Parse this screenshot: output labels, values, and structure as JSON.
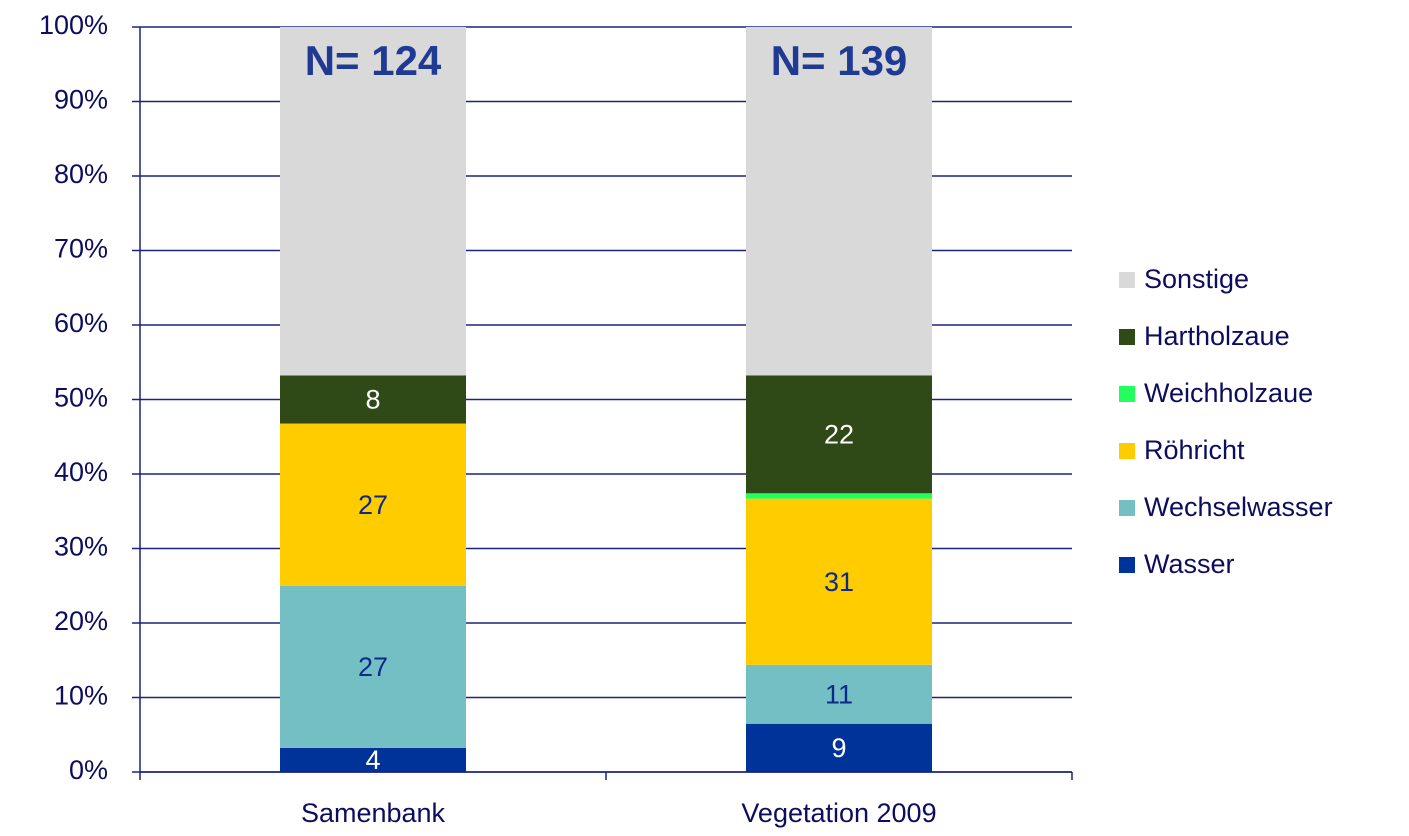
{
  "chart_data": {
    "type": "bar",
    "stacking": "percent",
    "categories": [
      "Samenbank",
      "Vegetation 2009"
    ],
    "series": [
      {
        "name": "Wasser",
        "color": "#003399",
        "label_color": "#ffffff",
        "data_labels": true,
        "values": [
          4,
          9
        ]
      },
      {
        "name": "Wechselwasser",
        "color": "#74bfc4",
        "label_color": "#0d2a8a",
        "data_labels": true,
        "values": [
          27,
          11
        ]
      },
      {
        "name": "Röhricht",
        "color": "#ffcc00",
        "label_color": "#0d2a8a",
        "data_labels": true,
        "values": [
          27,
          31
        ]
      },
      {
        "name": "Weichholzaue",
        "color": "#22ff5c",
        "label_color": "#ffffff",
        "data_labels": false,
        "values": [
          0,
          1
        ]
      },
      {
        "name": "Hartholzaue",
        "color": "#2f4a17",
        "label_color": "#ffffff",
        "data_labels": true,
        "values": [
          8,
          22
        ]
      },
      {
        "name": "Sonstige",
        "color": "#d9d9d9",
        "label_color": "#0d2a8a",
        "data_labels": false,
        "values": [
          58,
          65
        ]
      }
    ],
    "annotations": [
      "N= 124",
      "N= 139"
    ],
    "ylim": [
      0,
      100
    ],
    "yticks": [
      {
        "value": 0,
        "label": "0%"
      },
      {
        "value": 10,
        "label": "10%"
      },
      {
        "value": 20,
        "label": "20%"
      },
      {
        "value": 30,
        "label": "30%"
      },
      {
        "value": 40,
        "label": "40%"
      },
      {
        "value": 50,
        "label": "50%"
      },
      {
        "value": 60,
        "label": "60%"
      },
      {
        "value": 70,
        "label": "70%"
      },
      {
        "value": 80,
        "label": "80%"
      },
      {
        "value": 90,
        "label": "90%"
      },
      {
        "value": 100,
        "label": "100%"
      }
    ],
    "grid": true,
    "legend": "right"
  }
}
